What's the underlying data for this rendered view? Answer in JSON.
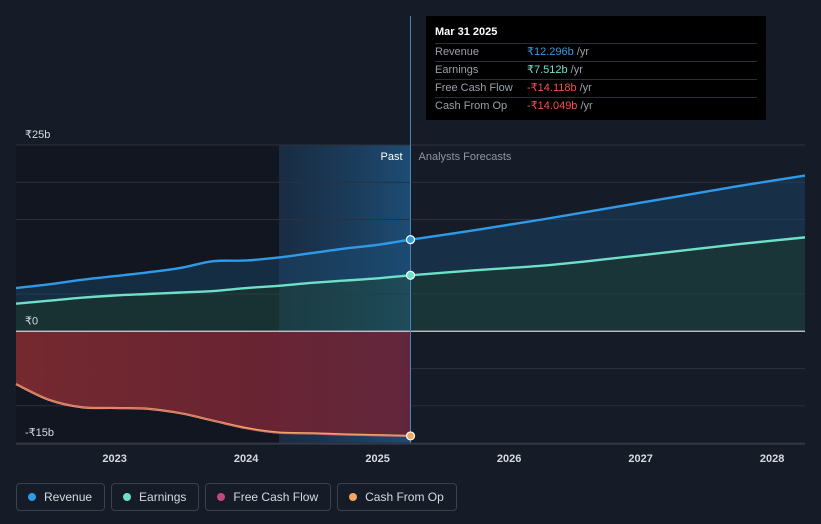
{
  "tooltip": {
    "date": "Mar 31 2025",
    "rows": [
      {
        "label": "Revenue",
        "value": "₹12.296b",
        "unit": "/yr",
        "color": "#2f9be8"
      },
      {
        "label": "Earnings",
        "value": "₹7.512b",
        "unit": "/yr",
        "color": "#6ee0c8"
      },
      {
        "label": "Free Cash Flow",
        "value": "-₹14.118b",
        "unit": "/yr",
        "color": "#f0514f"
      },
      {
        "label": "Cash From Op",
        "value": "-₹14.049b",
        "unit": "/yr",
        "color": "#f0514f"
      }
    ]
  },
  "legend": [
    {
      "label": "Revenue",
      "color": "#2f9be8"
    },
    {
      "label": "Earnings",
      "color": "#6ee0c8"
    },
    {
      "label": "Free Cash Flow",
      "color": "#c6477f"
    },
    {
      "label": "Cash From Op",
      "color": "#f0a860"
    }
  ],
  "chart_data": {
    "type": "area",
    "region_labels": {
      "past": "Past",
      "forecast": "Analysts Forecasts"
    },
    "y_tick_labels": [
      {
        "value": 25,
        "label": "₹25b"
      },
      {
        "value": 0,
        "label": "₹0"
      },
      {
        "value": -15,
        "label": "-₹15b"
      }
    ],
    "x_ticks": [
      2023,
      2024,
      2025,
      2026,
      2027,
      2028
    ],
    "xlim": [
      2022.25,
      2028.25
    ],
    "ylim": [
      -15,
      25
    ],
    "highlight_x": 2025.25,
    "past_shade_start": 2024.25,
    "series": [
      {
        "name": "Revenue",
        "color": "#2f9be8",
        "x": [
          2022.25,
          2022.5,
          2022.75,
          2023.0,
          2023.25,
          2023.5,
          2023.75,
          2024.0,
          2024.25,
          2024.5,
          2024.75,
          2025.0,
          2025.25,
          2025.75,
          2026.25,
          2026.75,
          2027.25,
          2027.75,
          2028.25
        ],
        "y": [
          5.8,
          6.3,
          6.9,
          7.4,
          7.9,
          8.5,
          9.4,
          9.5,
          9.9,
          10.5,
          11.1,
          11.6,
          12.296,
          13.6,
          15.0,
          16.5,
          18.0,
          19.5,
          20.9
        ]
      },
      {
        "name": "Earnings",
        "color": "#6ee0c8",
        "x": [
          2022.25,
          2022.5,
          2022.75,
          2023.0,
          2023.25,
          2023.5,
          2023.75,
          2024.0,
          2024.25,
          2024.5,
          2024.75,
          2025.0,
          2025.25,
          2025.75,
          2026.25,
          2026.75,
          2027.25,
          2027.75,
          2028.25
        ],
        "y": [
          3.7,
          4.1,
          4.5,
          4.8,
          5.0,
          5.2,
          5.4,
          5.8,
          6.1,
          6.5,
          6.8,
          7.1,
          7.512,
          8.2,
          8.8,
          9.7,
          10.7,
          11.7,
          12.6
        ]
      },
      {
        "name": "Free Cash Flow",
        "color": "#c6477f",
        "x": [
          2022.25,
          2022.5,
          2022.75,
          2023.0,
          2023.25,
          2023.5,
          2023.75,
          2024.0,
          2024.25,
          2024.5,
          2024.75,
          2025.0,
          2025.25
        ],
        "y": [
          -7.1,
          -9.2,
          -10.2,
          -10.3,
          -10.4,
          -11.0,
          -12.0,
          -13.1,
          -13.7,
          -13.8,
          -13.95,
          -14.05,
          -14.118
        ]
      },
      {
        "name": "Cash From Op",
        "color": "#f0a860",
        "x": [
          2022.25,
          2022.5,
          2022.75,
          2023.0,
          2023.25,
          2023.5,
          2023.75,
          2024.0,
          2024.25,
          2024.5,
          2024.75,
          2025.0,
          2025.25
        ],
        "y": [
          -7.1,
          -9.2,
          -10.2,
          -10.3,
          -10.4,
          -11.0,
          -12.0,
          -13.0,
          -13.6,
          -13.7,
          -13.85,
          -13.95,
          -14.049
        ]
      }
    ]
  }
}
